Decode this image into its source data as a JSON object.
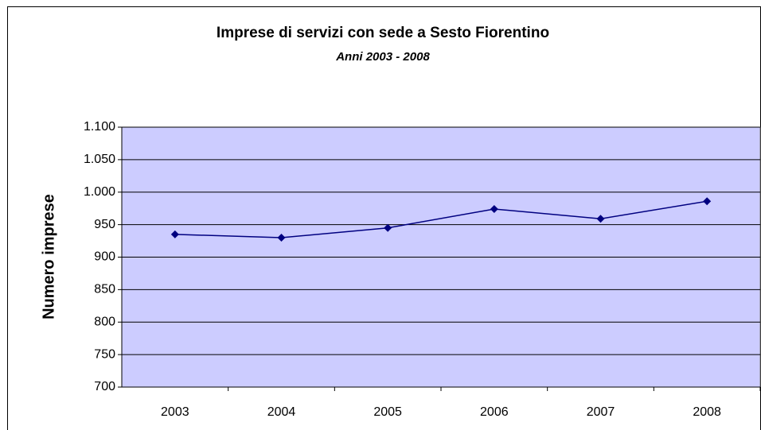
{
  "chart_data": {
    "type": "line",
    "title": "Imprese di servizi con sede a Sesto Fiorentino",
    "subtitle": "Anni 2003 - 2008",
    "y_label": "Numero imprese",
    "categories": [
      "2003",
      "2004",
      "2005",
      "2006",
      "2007",
      "2008"
    ],
    "series": [
      {
        "name": "Imprese",
        "color": "#000080",
        "values": [
          935,
          930,
          945,
          974,
          959,
          986
        ]
      }
    ],
    "ylim": [
      700,
      1100
    ],
    "yticks": [
      700,
      750,
      800,
      850,
      900,
      950,
      {
        "value": 1000,
        "label": "1.000"
      },
      {
        "value": 1050,
        "label": "1.050"
      },
      {
        "value": 1100,
        "label": "1.100"
      }
    ],
    "grid": true,
    "plot_background": "#ccccff"
  }
}
